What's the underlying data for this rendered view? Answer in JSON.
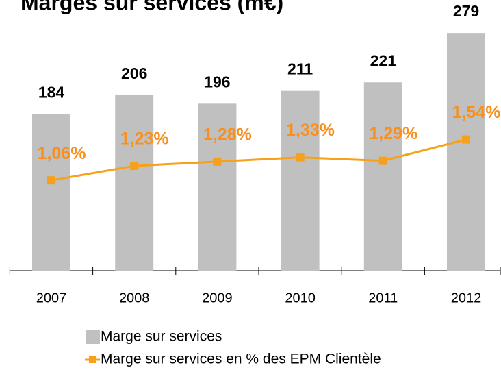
{
  "chart_data": {
    "type": "bar",
    "title": "Marges sur services (m€)",
    "categories": [
      "2007",
      "2008",
      "2009",
      "2010",
      "2011",
      "2012"
    ],
    "ylim": [
      0,
      300
    ],
    "y2lim": [
      0,
      3
    ],
    "legend": "bottom",
    "series": [
      {
        "name": "Marge sur services",
        "type": "bar",
        "color": "#c0c0c0",
        "values": [
          184,
          206,
          196,
          211,
          221,
          279
        ]
      },
      {
        "name": "Marge sur services en % des EPM Clientèle",
        "type": "line",
        "axis": "y2",
        "color": "#f7a11a",
        "label_color": "#f7901e",
        "values": [
          1.06,
          1.23,
          1.28,
          1.33,
          1.29,
          1.54
        ],
        "value_labels": [
          "1,06%",
          "1,23%",
          "1,28%",
          "1,33%",
          "1,29%",
          "1,54%"
        ]
      }
    ]
  }
}
